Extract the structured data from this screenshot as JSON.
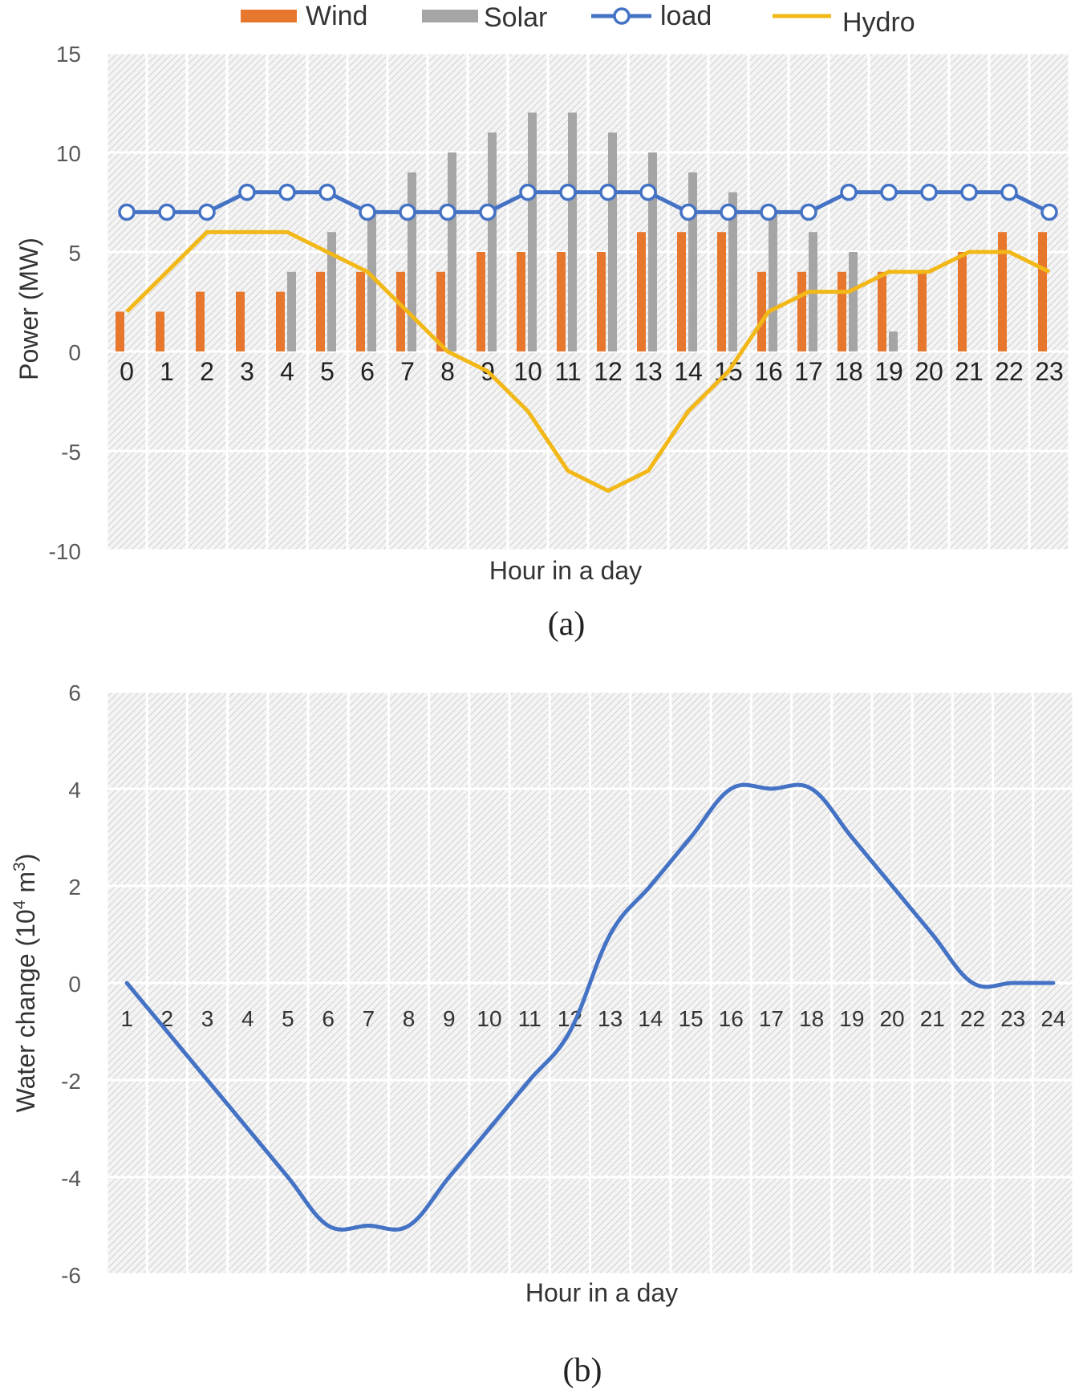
{
  "colors": {
    "wind": "#e8772e",
    "solar": "#a5a5a5",
    "load": "#4472c4",
    "hydro": "#f2b818",
    "water": "#4472c4",
    "grid": "#ffffff",
    "plot_bg": "#f2f2f2",
    "hatch": "#d2d2d2",
    "tick_text": "#595959",
    "axis_text": "#333333"
  },
  "chart_data": [
    {
      "type": "bar",
      "panel_label": "(a)",
      "title": "",
      "xlabel": "Hour in a day",
      "ylabel": "Power (MW)",
      "ylim": [
        -10,
        15
      ],
      "yticks": [
        -10,
        -5,
        0,
        5,
        10,
        15
      ],
      "grid": true,
      "legend_position": "top",
      "categories": [
        "0",
        "1",
        "2",
        "3",
        "4",
        "5",
        "6",
        "7",
        "8",
        "9",
        "10",
        "11",
        "12",
        "13",
        "14",
        "15",
        "16",
        "17",
        "18",
        "19",
        "20",
        "21",
        "22",
        "23"
      ],
      "series": [
        {
          "name": "Wind",
          "kind": "bar",
          "values": [
            2,
            2,
            3,
            3,
            3,
            4,
            4,
            4,
            4,
            5,
            5,
            5,
            5,
            6,
            6,
            6,
            4,
            4,
            4,
            4,
            4,
            5,
            6,
            6
          ]
        },
        {
          "name": "Solar",
          "kind": "bar",
          "values": [
            0,
            0,
            0,
            0,
            4,
            6,
            7,
            9,
            10,
            11,
            12,
            12,
            11,
            10,
            9,
            8,
            7,
            6,
            5,
            1,
            0,
            0,
            0,
            0
          ]
        },
        {
          "name": "load",
          "kind": "line-marker",
          "values": [
            7,
            7,
            7,
            8,
            8,
            8,
            7,
            7,
            7,
            7,
            8,
            8,
            8,
            8,
            7,
            7,
            7,
            7,
            8,
            8,
            8,
            8,
            8,
            7
          ]
        },
        {
          "name": "Hydro",
          "kind": "line",
          "values": [
            2,
            4,
            6,
            6,
            6,
            5,
            4,
            2,
            0,
            -1,
            -3,
            -6,
            -7,
            -6,
            -3,
            -1,
            2,
            3,
            3,
            4,
            4,
            5,
            5,
            4
          ]
        }
      ]
    },
    {
      "type": "line",
      "panel_label": "(b)",
      "title": "",
      "xlabel": "Hour in a day",
      "ylabel_main": "Water change (10",
      "ylabel_sup1": "4",
      "ylabel_mid": " m",
      "ylabel_sup2": "3",
      "ylabel_end": ")",
      "ylim": [
        -6,
        6
      ],
      "yticks": [
        -6,
        -4,
        -2,
        0,
        2,
        4,
        6
      ],
      "grid": true,
      "categories": [
        "1",
        "2",
        "3",
        "4",
        "5",
        "6",
        "7",
        "8",
        "9",
        "10",
        "11",
        "12",
        "13",
        "14",
        "15",
        "16",
        "17",
        "18",
        "19",
        "20",
        "21",
        "22",
        "23",
        "24"
      ],
      "series": [
        {
          "name": "Water change",
          "values": [
            0,
            -1,
            -2,
            -3,
            -4,
            -5,
            -5,
            -5,
            -4,
            -3,
            -2,
            -1,
            1,
            2,
            3,
            4,
            4,
            4,
            3,
            2,
            1,
            0,
            0,
            0
          ]
        }
      ]
    }
  ]
}
